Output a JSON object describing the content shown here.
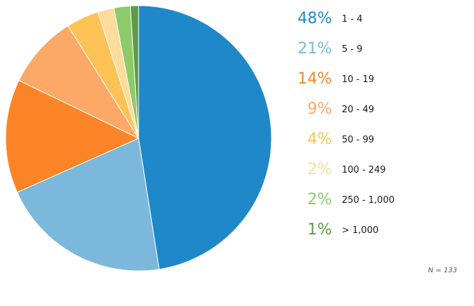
{
  "chart_data": {
    "type": "pie",
    "categories": [
      "1 - 4",
      "5 - 9",
      "10 - 19",
      "20 - 49",
      "50 - 99",
      "100 - 249",
      "250 - 1,000",
      "> 1,000"
    ],
    "values": [
      48,
      21,
      14,
      9,
      4,
      2,
      2,
      1
    ],
    "value_labels": [
      "48%",
      "21%",
      "14%",
      "9%",
      "4%",
      "2%",
      "2%",
      "1%"
    ],
    "colors": [
      "#1f88c9",
      "#7bb8db",
      "#fb8526",
      "#fca866",
      "#fdc255",
      "#fddb9a",
      "#8ccb6a",
      "#5e9a48"
    ],
    "legend_position": "right",
    "note": "N = 133"
  }
}
